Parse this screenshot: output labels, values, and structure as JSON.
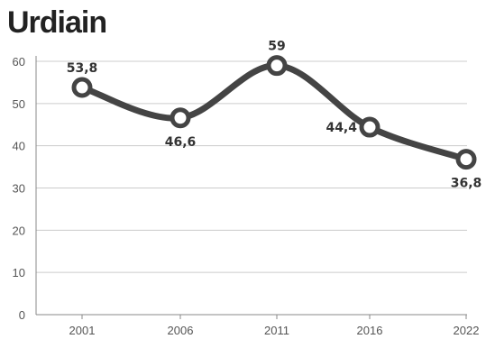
{
  "chart_data": {
    "type": "line",
    "title": "Urdiain",
    "x": [
      "2001",
      "2006",
      "2011",
      "2016",
      "2022"
    ],
    "series": [
      {
        "values": [
          53.8,
          46.6,
          59,
          44.4,
          36.8
        ]
      }
    ],
    "data_labels": [
      "53,8",
      "46,6",
      "59",
      "44,4",
      "36,8"
    ],
    "label_positions": [
      "above",
      "below",
      "above",
      "left",
      "below"
    ],
    "ylim": [
      0,
      60
    ],
    "yticks": [
      "0",
      "10",
      "20",
      "30",
      "40",
      "50",
      "60"
    ],
    "grid": true,
    "line_color": "#444444",
    "grid_color": "#cccccc"
  }
}
